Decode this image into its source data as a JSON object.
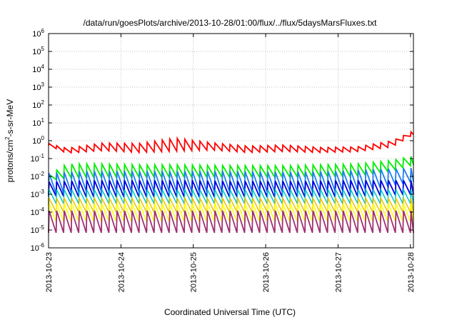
{
  "chart_data": {
    "type": "line",
    "title": "/data/run/goesPlots/archive/2013-10-28/01:00/flux/../flux/5daysMarsFluxes.txt",
    "xlabel": "Coordinated Universal Time (UTC)",
    "ylabel": "protons/cm2-s-sr-MeV",
    "ylabel_parts": {
      "pre": "protons/cm",
      "sup": "2",
      "post": "-s-sr-MeV"
    },
    "x_scale": "time",
    "xlim": [
      "2013-10-23T00:00",
      "2013-10-28T01:00"
    ],
    "y_scale": "log",
    "ylim": [
      1e-06,
      1000000.0
    ],
    "x_ticks": [
      "2013-10-23",
      "2013-10-24",
      "2013-10-25",
      "2013-10-26",
      "2013-10-27",
      "2013-10-28"
    ],
    "y_ticks": [
      {
        "value": 1e-06,
        "base": "10",
        "exp": "-6"
      },
      {
        "value": 1e-05,
        "base": "10",
        "exp": "-5"
      },
      {
        "value": 0.0001,
        "base": "10",
        "exp": "-4"
      },
      {
        "value": 0.001,
        "base": "10",
        "exp": "-3"
      },
      {
        "value": 0.01,
        "base": "10",
        "exp": "-2"
      },
      {
        "value": 0.1,
        "base": "10",
        "exp": "-1"
      },
      {
        "value": 1.0,
        "base": "10",
        "exp": "0"
      },
      {
        "value": 10.0,
        "base": "10",
        "exp": "1"
      },
      {
        "value": 100.0,
        "base": "10",
        "exp": "2"
      },
      {
        "value": 1000.0,
        "base": "10",
        "exp": "3"
      },
      {
        "value": 10000.0,
        "base": "10",
        "exp": "4"
      },
      {
        "value": 100000.0,
        "base": "10",
        "exp": "5"
      },
      {
        "value": 1000000.0,
        "base": "10",
        "exp": "6"
      }
    ],
    "grid": true,
    "legend": "none",
    "series": [
      {
        "color": "#ff0000",
        "stroke_width": 1.8,
        "sawtooth_period_hours": 2.5,
        "envelope_hours": [
          0,
          6,
          18,
          30,
          42,
          54,
          66,
          78,
          90,
          102,
          114,
          121
        ],
        "envelope_low": [
          0.55,
          0.2,
          0.28,
          0.22,
          0.26,
          0.3,
          0.22,
          0.25,
          0.22,
          0.24,
          0.45,
          2.2
        ],
        "envelope_high": [
          0.7,
          0.38,
          0.75,
          0.7,
          1.4,
          0.78,
          0.5,
          0.58,
          0.42,
          0.45,
          1.0,
          3.6
        ]
      },
      {
        "color": "#00ee00",
        "stroke_width": 1.8,
        "sawtooth_period_hours": 2.5,
        "envelope_hours": [
          0,
          6,
          18,
          30,
          42,
          54,
          66,
          78,
          90,
          102,
          114,
          121
        ],
        "envelope_low": [
          0.006,
          0.008,
          0.009,
          0.009,
          0.009,
          0.009,
          0.009,
          0.009,
          0.01,
          0.01,
          0.02,
          0.045
        ],
        "envelope_high": [
          0.012,
          0.05,
          0.05,
          0.045,
          0.045,
          0.042,
          0.04,
          0.04,
          0.045,
          0.05,
          0.08,
          0.14
        ]
      },
      {
        "color": "#1e7ef0",
        "stroke_width": 1.8,
        "sawtooth_period_hours": 2.5,
        "envelope_hours": [
          0,
          12,
          24,
          36,
          48,
          60,
          72,
          84,
          96,
          108,
          121
        ],
        "envelope_low": [
          0.001,
          0.0015,
          0.0015,
          0.0014,
          0.0014,
          0.0014,
          0.0014,
          0.0014,
          0.0015,
          0.002,
          0.005
        ],
        "envelope_high": [
          0.015,
          0.02,
          0.02,
          0.02,
          0.02,
          0.02,
          0.018,
          0.018,
          0.02,
          0.025,
          0.03
        ]
      },
      {
        "color": "#0000dd",
        "stroke_width": 1.8,
        "sawtooth_period_hours": 2.5,
        "envelope_hours": [
          0,
          12,
          24,
          36,
          48,
          60,
          72,
          84,
          96,
          108,
          121
        ],
        "envelope_low": [
          0.0008,
          0.0007,
          0.0007,
          0.0007,
          0.0007,
          0.0007,
          0.0007,
          0.0007,
          0.0007,
          0.0008,
          0.001
        ],
        "envelope_high": [
          0.005,
          0.006,
          0.006,
          0.006,
          0.006,
          0.0055,
          0.0055,
          0.0055,
          0.006,
          0.006,
          0.006
        ]
      },
      {
        "color": "#00c8c8",
        "stroke_width": 1.5,
        "sawtooth_period_hours": 2.5,
        "envelope_hours": [
          0,
          60,
          121
        ],
        "envelope_low": [
          0.0003,
          0.0003,
          0.0003
        ],
        "envelope_high": [
          0.0018,
          0.0018,
          0.0018
        ]
      },
      {
        "color": "#e8c400",
        "stroke_width": 1.5,
        "sawtooth_period_hours": 2.5,
        "envelope_hours": [
          0,
          60,
          121
        ],
        "envelope_low": [
          0.0001,
          0.0001,
          0.0001
        ],
        "envelope_high": [
          0.0006,
          0.0006,
          0.0006
        ]
      },
      {
        "color": "#ffff00",
        "stroke_width": 1.5,
        "sawtooth_period_hours": 2.5,
        "envelope_hours": [
          0,
          60,
          121
        ],
        "envelope_low": [
          3e-05,
          3e-05,
          3e-05
        ],
        "envelope_high": [
          0.0003,
          0.0003,
          0.0003
        ]
      },
      {
        "color": "#a03070",
        "stroke_width": 1.8,
        "sawtooth_period_hours": 2.5,
        "envelope_hours": [
          0,
          60,
          121
        ],
        "envelope_low": [
          7e-06,
          7e-06,
          7e-06
        ],
        "envelope_high": [
          0.00012,
          0.00012,
          0.00012
        ]
      }
    ]
  }
}
